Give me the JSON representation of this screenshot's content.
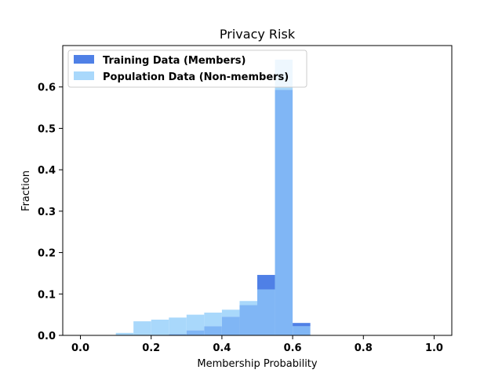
{
  "chart_data": {
    "type": "bar",
    "title": "Privacy Risk",
    "xlabel": "Membership Probability",
    "ylabel": "Fraction",
    "xlim": [
      -0.05,
      1.05
    ],
    "ylim": [
      0,
      0.7
    ],
    "xticks": [
      "0.0",
      "0.2",
      "0.4",
      "0.6",
      "0.8",
      "1.0"
    ],
    "xtick_values": [
      0.0,
      0.2,
      0.4,
      0.6,
      0.8,
      1.0
    ],
    "yticks": [
      "0.0",
      "0.1",
      "0.2",
      "0.3",
      "0.4",
      "0.5",
      "0.6"
    ],
    "ytick_values": [
      0.0,
      0.1,
      0.2,
      0.3,
      0.4,
      0.5,
      0.6
    ],
    "bin_edges": [
      0.0,
      0.05,
      0.1,
      0.15,
      0.2,
      0.25,
      0.3,
      0.35,
      0.4,
      0.45,
      0.5,
      0.55,
      0.6,
      0.65,
      0.7,
      0.75,
      0.8,
      0.85,
      0.9,
      0.95,
      1.0
    ],
    "legend_position": "top-left",
    "series": [
      {
        "name": "Training Data (Members)",
        "color": "#4f80e6",
        "values": [
          0,
          0,
          0,
          0,
          0,
          0.003,
          0.012,
          0.022,
          0.045,
          0.073,
          0.146,
          0.593,
          0.03,
          0,
          0,
          0,
          0,
          0,
          0,
          0
        ]
      },
      {
        "name": "Population Data (Non-members)",
        "color": "#a9d8fb",
        "values": [
          0,
          0,
          0.006,
          0.034,
          0.038,
          0.043,
          0.05,
          0.055,
          0.062,
          0.083,
          0.111,
          0.666,
          0.022,
          0,
          0,
          0,
          0,
          0,
          0,
          0
        ]
      }
    ],
    "overlap_color": "#80b6f5"
  }
}
